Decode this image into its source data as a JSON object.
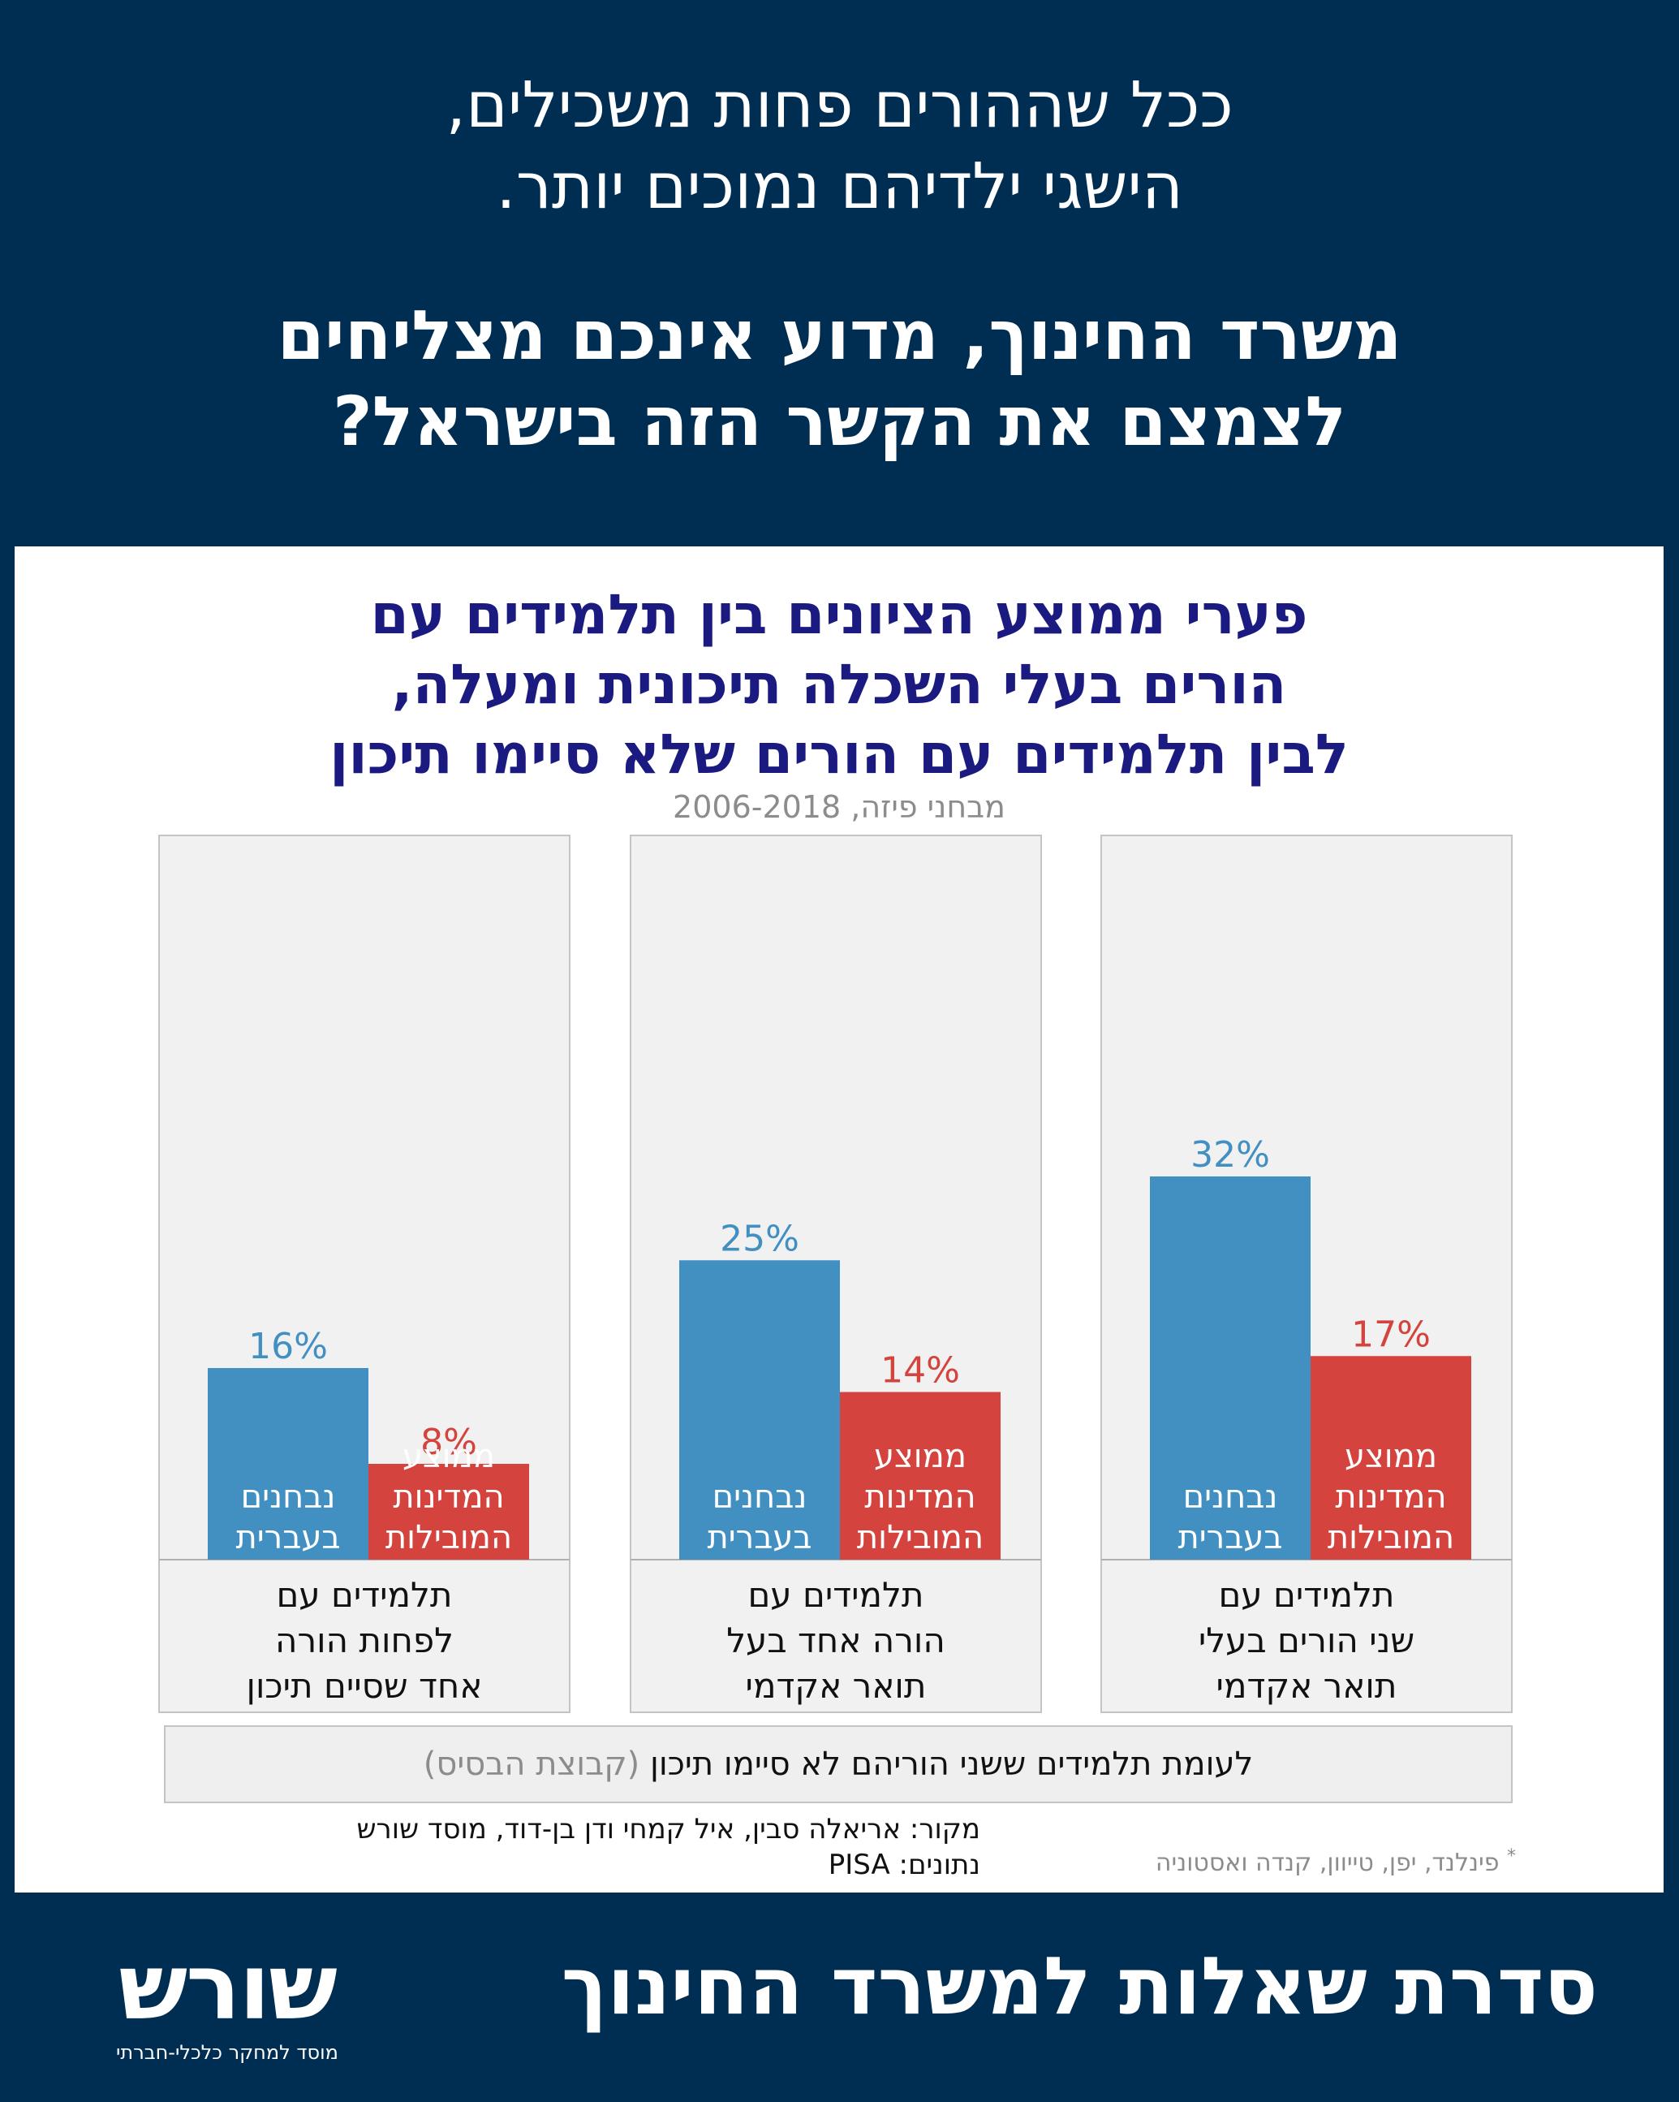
{
  "header": {
    "line1": [
      "ככל שההורים פחות משכילים,",
      "הישגי ילדיהם נמוכים יותר."
    ],
    "line2": [
      "משרד החינוך, מדוע אינכם מצליחים",
      "לצמצם את הקשר הזה בישראל?"
    ]
  },
  "chart_data": {
    "type": "bar",
    "title": [
      "פערי ממוצע הציונים בין תלמידים עם",
      "הורים בעלי השכלה תיכונית ומעלה,",
      "לבין תלמידים עם הורים שלא סיימו תיכון"
    ],
    "subtitle": "מבחני פיזה, 2006-2018",
    "ylim": [
      0,
      35
    ],
    "categories": [
      [
        "תלמידים עם",
        "לפחות הורה",
        "אחד שסיים תיכון"
      ],
      [
        "תלמידים עם",
        "הורה אחד בעל",
        "תואר אקדמי"
      ],
      [
        "תלמידים עם",
        "שני הורים בעלי",
        "תואר אקדמי"
      ]
    ],
    "series": [
      {
        "name": [
          "נבחנים",
          "בעברית"
        ],
        "color": "#428fc2",
        "values": [
          16,
          25,
          32
        ],
        "labels": [
          "16%",
          "25%",
          "32%"
        ]
      },
      {
        "name": [
          "ממוצע",
          "המדינות",
          "המובילות"
        ],
        "color": "#d4433e",
        "values": [
          8,
          14,
          17
        ],
        "labels": [
          "8%",
          "14%",
          "17%"
        ]
      }
    ],
    "baseline_note": {
      "main": "לעומת תלמידים ששני הוריהם לא סיימו תיכון",
      "muted": "(קבוצת הבסיס)"
    }
  },
  "source": {
    "line1": "מקור:  אריאלה סבין, איל קמחי ודן בן-דוד, מוסד שורש",
    "line2": "נתונים: PISA"
  },
  "footnote": {
    "star": "*",
    "text": "פינלנד, יפן, טייוון, קנדה ואסטוניה"
  },
  "footer": {
    "series_title": "סדרת שאלות למשרד החינוך",
    "logo_word": "שורש",
    "logo_tagline": "מוסד למחקר כלכלי-חברתי"
  },
  "colors": {
    "background": "#002d52",
    "panel": "#ffffff",
    "title": "#1a1a80",
    "muted": "#8c8c8c"
  }
}
